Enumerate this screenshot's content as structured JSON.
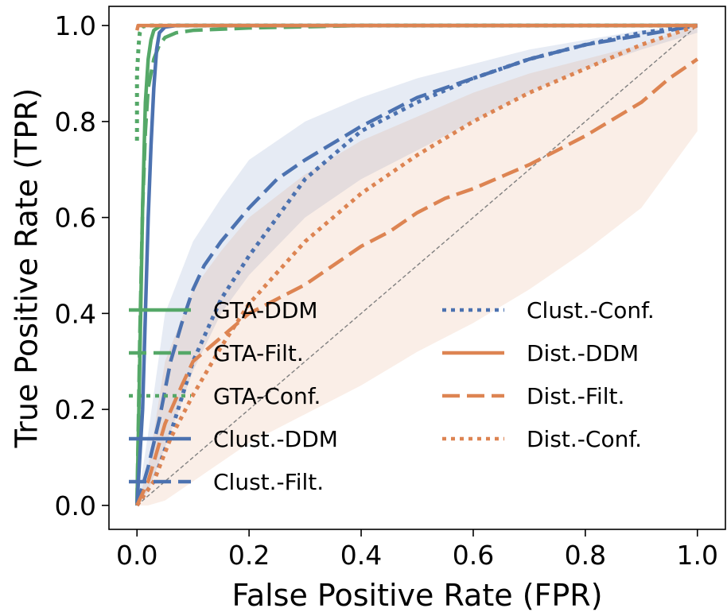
{
  "chart_data": {
    "type": "line",
    "title": "",
    "xlabel": "False Positive Rate (FPR)",
    "ylabel": "True Positive Rate (TPR)",
    "xlim": [
      -0.05,
      1.05
    ],
    "ylim": [
      -0.05,
      1.04
    ],
    "xticks": [
      0.0,
      0.2,
      0.4,
      0.6,
      0.8,
      1.0
    ],
    "xtick_labels": [
      "0.0",
      "0.2",
      "0.4",
      "0.6",
      "0.8",
      "1.0"
    ],
    "yticks": [
      0.0,
      0.2,
      0.4,
      0.6,
      0.8,
      1.0
    ],
    "ytick_labels": [
      "0.0",
      "0.2",
      "0.4",
      "0.6",
      "0.8",
      "1.0"
    ],
    "grid": false,
    "legend_position": "lower-right",
    "diagonal": {
      "x": [
        0,
        1
      ],
      "y": [
        0,
        1
      ],
      "color": "#808080",
      "style": "dashed"
    },
    "bands": [
      {
        "name": "Clust.-Filt. band",
        "color": "#4c72b0",
        "x": [
          0.0,
          0.02,
          0.05,
          0.1,
          0.15,
          0.2,
          0.3,
          0.4,
          0.5,
          0.6,
          0.7,
          0.8,
          0.9,
          1.0
        ],
        "lower": [
          0.0,
          0.03,
          0.12,
          0.28,
          0.4,
          0.48,
          0.6,
          0.68,
          0.74,
          0.8,
          0.86,
          0.91,
          0.95,
          0.985
        ],
        "upper": [
          0.0,
          0.15,
          0.4,
          0.55,
          0.64,
          0.72,
          0.8,
          0.85,
          0.89,
          0.92,
          0.95,
          0.97,
          0.99,
          1.0
        ]
      },
      {
        "name": "Dist.-Filt. band",
        "color": "#dd8452",
        "x": [
          0.0,
          0.02,
          0.05,
          0.1,
          0.15,
          0.2,
          0.3,
          0.4,
          0.5,
          0.6,
          0.7,
          0.8,
          0.9,
          1.0
        ],
        "lower": [
          0.0,
          0.0,
          0.01,
          0.05,
          0.09,
          0.13,
          0.19,
          0.25,
          0.32,
          0.38,
          0.45,
          0.53,
          0.62,
          0.78
        ],
        "upper": [
          0.0,
          0.08,
          0.3,
          0.45,
          0.53,
          0.6,
          0.69,
          0.76,
          0.81,
          0.86,
          0.9,
          0.93,
          0.96,
          1.0
        ]
      }
    ],
    "series": [
      {
        "name": "GTA-DDM",
        "color": "#55a868",
        "style": "solid",
        "x": [
          0.0,
          0.005,
          0.01,
          0.015,
          0.02,
          0.025,
          0.03,
          0.04,
          0.06,
          1.0
        ],
        "y": [
          0.0,
          0.3,
          0.62,
          0.84,
          0.93,
          0.97,
          0.99,
          0.998,
          1.0,
          1.0
        ]
      },
      {
        "name": "GTA-Filt.",
        "color": "#55a868",
        "style": "dashed",
        "x": [
          0.0,
          0.005,
          0.01,
          0.015,
          0.02,
          0.03,
          0.04,
          0.05,
          0.07,
          0.1,
          0.2,
          0.4,
          1.0
        ],
        "y": [
          0.0,
          0.35,
          0.62,
          0.78,
          0.87,
          0.93,
          0.96,
          0.975,
          0.985,
          0.99,
          0.995,
          1.0,
          1.0
        ]
      },
      {
        "name": "GTA-Conf.",
        "color": "#55a868",
        "style": "dotted",
        "x": [
          0.0,
          0.0,
          0.003,
          0.005,
          0.008,
          0.01,
          0.02,
          0.05,
          1.0
        ],
        "y": [
          0.76,
          0.9,
          0.96,
          0.985,
          0.995,
          0.998,
          1.0,
          1.0,
          1.0
        ]
      },
      {
        "name": "Clust.-DDM",
        "color": "#4c72b0",
        "style": "solid",
        "x": [
          0.0,
          0.01,
          0.015,
          0.02,
          0.025,
          0.03,
          0.035,
          0.04,
          0.05,
          0.07,
          1.0
        ],
        "y": [
          0.0,
          0.2,
          0.4,
          0.6,
          0.75,
          0.87,
          0.95,
          0.985,
          0.997,
          1.0,
          1.0
        ]
      },
      {
        "name": "Clust.-Filt.",
        "color": "#4c72b0",
        "style": "dashed",
        "x": [
          0.0,
          0.02,
          0.04,
          0.06,
          0.08,
          0.1,
          0.12,
          0.15,
          0.2,
          0.25,
          0.3,
          0.4,
          0.5,
          0.6,
          0.7,
          0.8,
          0.9,
          1.0
        ],
        "y": [
          0.0,
          0.08,
          0.18,
          0.3,
          0.38,
          0.45,
          0.5,
          0.55,
          0.62,
          0.68,
          0.72,
          0.79,
          0.85,
          0.89,
          0.93,
          0.96,
          0.98,
          1.0
        ]
      },
      {
        "name": "Clust.-Conf.",
        "color": "#4c72b0",
        "style": "dotted",
        "x": [
          0.0,
          0.03,
          0.06,
          0.1,
          0.15,
          0.2,
          0.25,
          0.3,
          0.4,
          0.5,
          0.6,
          0.7,
          0.8,
          0.9,
          1.0
        ],
        "y": [
          0.0,
          0.05,
          0.15,
          0.3,
          0.43,
          0.52,
          0.6,
          0.68,
          0.78,
          0.84,
          0.89,
          0.93,
          0.96,
          0.985,
          1.0
        ]
      },
      {
        "name": "Dist.-DDM",
        "color": "#dd8452",
        "style": "solid",
        "x": [
          0.0,
          0.002,
          0.01,
          1.0
        ],
        "y": [
          0.99,
          1.0,
          1.0,
          1.0
        ]
      },
      {
        "name": "Dist.-Filt.",
        "color": "#dd8452",
        "style": "dashed",
        "x": [
          0.0,
          0.02,
          0.05,
          0.08,
          0.1,
          0.15,
          0.2,
          0.25,
          0.3,
          0.35,
          0.4,
          0.45,
          0.5,
          0.55,
          0.6,
          0.7,
          0.8,
          0.9,
          0.95,
          1.0
        ],
        "y": [
          0.0,
          0.05,
          0.17,
          0.25,
          0.3,
          0.35,
          0.4,
          0.43,
          0.46,
          0.5,
          0.54,
          0.57,
          0.61,
          0.64,
          0.66,
          0.71,
          0.77,
          0.84,
          0.89,
          0.93
        ]
      },
      {
        "name": "Dist.-Conf.",
        "color": "#dd8452",
        "style": "dotted",
        "x": [
          0.0,
          0.03,
          0.06,
          0.1,
          0.15,
          0.2,
          0.3,
          0.4,
          0.5,
          0.6,
          0.7,
          0.8,
          0.9,
          1.0
        ],
        "y": [
          0.0,
          0.05,
          0.14,
          0.23,
          0.33,
          0.42,
          0.55,
          0.65,
          0.73,
          0.8,
          0.86,
          0.91,
          0.96,
          1.0
        ]
      }
    ]
  }
}
